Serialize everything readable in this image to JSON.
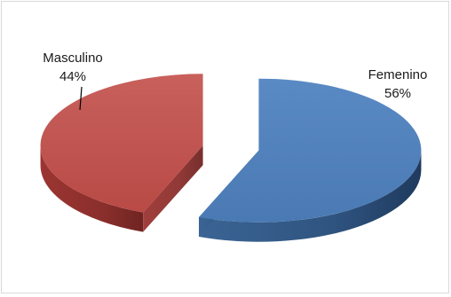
{
  "chart_data": {
    "type": "pie",
    "title": "",
    "categories": [
      "Femenino",
      "Masculino"
    ],
    "values": [
      56,
      44
    ],
    "data_labels": [
      "56%",
      "44%"
    ],
    "colors": [
      "#4f81bd",
      "#c0504d"
    ],
    "exploded": true,
    "style": "3d",
    "legend": "none"
  }
}
